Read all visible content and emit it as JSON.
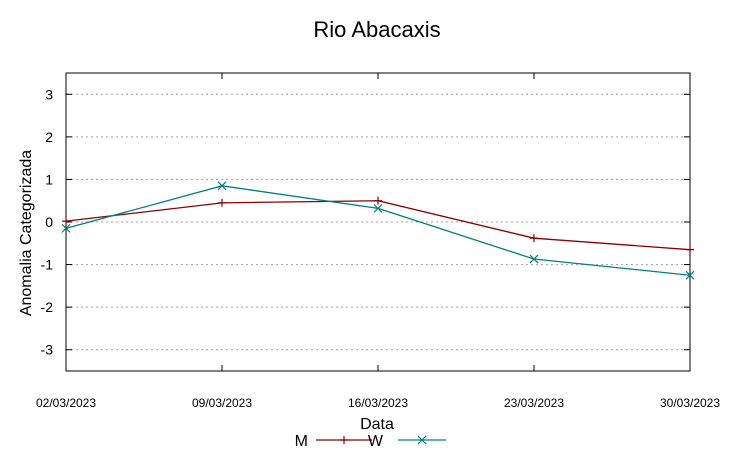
{
  "chart_data": {
    "type": "line",
    "title": "Rio Abacaxis",
    "xlabel": "Data",
    "ylabel": "Anomalia Categorizada",
    "categories": [
      "02/03/2023",
      "09/03/2023",
      "16/03/2023",
      "23/03/2023",
      "30/03/2023"
    ],
    "yticks": [
      "3",
      "2",
      "1",
      "0",
      "-1",
      "-2",
      "-3"
    ],
    "ytick_values": [
      3,
      2,
      1,
      0,
      -1,
      -2,
      -3
    ],
    "ylim": [
      -3.5,
      3.5
    ],
    "grid": "horizontal dashed",
    "legend_position": "bottom",
    "series": [
      {
        "name": "M",
        "values": [
          0.02,
          0.45,
          0.5,
          -0.38,
          -0.65
        ],
        "color": "#8b0000",
        "marker": "plus"
      },
      {
        "name": "W",
        "values": [
          -0.15,
          0.85,
          0.32,
          -0.87,
          -1.25
        ],
        "color": "#008080",
        "marker": "cross"
      }
    ]
  }
}
